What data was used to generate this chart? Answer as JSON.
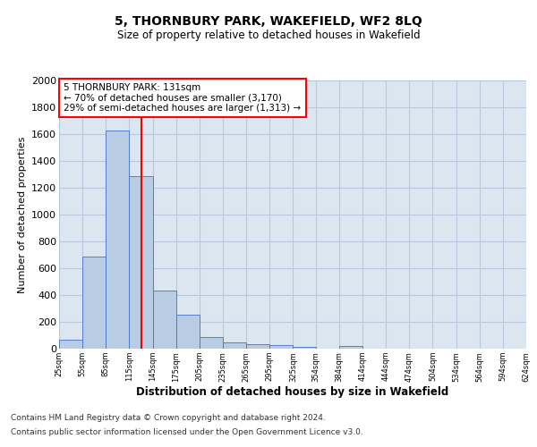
{
  "title": "5, THORNBURY PARK, WAKEFIELD, WF2 8LQ",
  "subtitle": "Size of property relative to detached houses in Wakefield",
  "xlabel": "Distribution of detached houses by size in Wakefield",
  "ylabel": "Number of detached properties",
  "footer_line1": "Contains HM Land Registry data © Crown copyright and database right 2024.",
  "footer_line2": "Contains public sector information licensed under the Open Government Licence v3.0.",
  "annotation_line1": "5 THORNBURY PARK: 131sqm",
  "annotation_line2": "← 70% of detached houses are smaller (3,170)",
  "annotation_line3": "29% of semi-detached houses are larger (1,313) →",
  "bar_color": "#b8cce4",
  "bar_edge_color": "#4472c4",
  "red_line_x": 131,
  "bin_edges": [
    25,
    55,
    85,
    115,
    145,
    175,
    205,
    235,
    265,
    295,
    325,
    354,
    384,
    414,
    444,
    474,
    504,
    534,
    564,
    594,
    624
  ],
  "bar_heights": [
    65,
    690,
    1630,
    1290,
    435,
    255,
    88,
    50,
    35,
    28,
    15,
    0,
    18,
    0,
    0,
    0,
    0,
    0,
    0,
    0
  ],
  "ylim": [
    0,
    2000
  ],
  "xlim": [
    25,
    624
  ],
  "tick_labels": [
    "25sqm",
    "55sqm",
    "85sqm",
    "115sqm",
    "145sqm",
    "175sqm",
    "205sqm",
    "235sqm",
    "265sqm",
    "295sqm",
    "325sqm",
    "354sqm",
    "384sqm",
    "414sqm",
    "444sqm",
    "474sqm",
    "504sqm",
    "534sqm",
    "564sqm",
    "594sqm",
    "624sqm"
  ],
  "yticks": [
    0,
    200,
    400,
    600,
    800,
    1000,
    1200,
    1400,
    1600,
    1800,
    2000
  ],
  "background_color": "#ffffff",
  "axes_bg_color": "#dce6f1",
  "grid_color": "#b8c8dc"
}
